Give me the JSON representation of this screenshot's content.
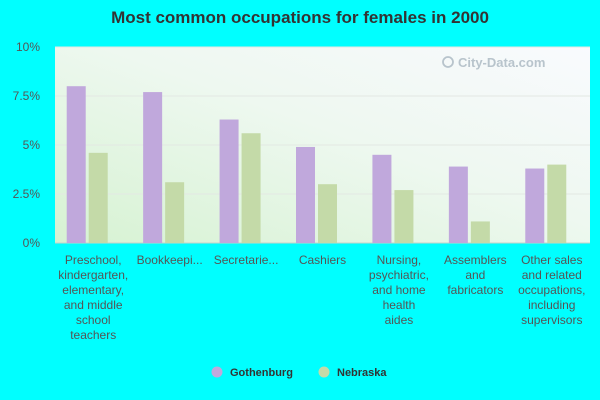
{
  "chart_data": {
    "type": "bar",
    "title": "Most common occupations for females in 2000",
    "watermark": "City-Data.com",
    "categories": [
      "Preschool, kindergarten, elementary, and middle school teachers",
      "Bookkeepi...",
      "Secretarie...",
      "Cashiers",
      "Nursing, psychiatric, and home health aides",
      "Assemblers and fabricators",
      "Other sales and related occupations, including supervisors"
    ],
    "category_lines": [
      [
        "Preschool,",
        "kindergarten,",
        "elementary,",
        "and middle",
        "school",
        "teachers"
      ],
      [
        "Bookkeepi..."
      ],
      [
        "Secretarie..."
      ],
      [
        "Cashiers"
      ],
      [
        "Nursing,",
        "psychiatric,",
        "and home",
        "health",
        "aides"
      ],
      [
        "Assemblers",
        "and",
        "fabricators"
      ],
      [
        "Other sales",
        "and related",
        "occupations,",
        "including",
        "supervisors"
      ]
    ],
    "series": [
      {
        "name": "Gothenburg",
        "color": "#c0a8dc",
        "values": [
          8.0,
          7.7,
          6.3,
          4.9,
          4.5,
          3.9,
          3.8
        ]
      },
      {
        "name": "Nebraska",
        "color": "#c4daa8",
        "values": [
          4.6,
          3.1,
          5.6,
          3.0,
          2.7,
          1.1,
          4.0
        ]
      }
    ],
    "yticks": [
      "0%",
      "2.5%",
      "5%",
      "7.5%",
      "10%"
    ],
    "ylim": [
      0,
      10
    ],
    "grid": true,
    "legend_position": "bottom-center"
  }
}
